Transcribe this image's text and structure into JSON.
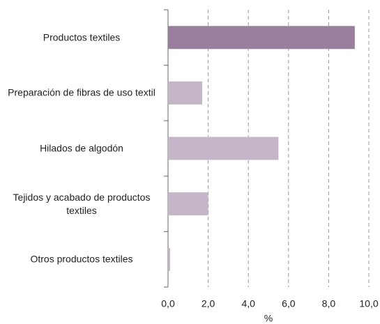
{
  "chart_data": {
    "type": "bar",
    "orientation": "horizontal",
    "categories": [
      "Productos textiles",
      "Preparación de fibras de uso textil",
      "Hilados de algodón",
      "Tejidos y acabado de productos textiles",
      "Otros productos textiles"
    ],
    "values": [
      9.3,
      1.7,
      5.5,
      2.0,
      0.1
    ],
    "colors": [
      "#9a7e9e",
      "#c5b5c9",
      "#c5b5c9",
      "#c5b5c9",
      "#c5b5c9"
    ],
    "xlabel": "%",
    "xlim": [
      0,
      10
    ],
    "xticks": [
      {
        "value": 0,
        "label": "0,0"
      },
      {
        "value": 2,
        "label": "2,0"
      },
      {
        "value": 4,
        "label": "4,0"
      },
      {
        "value": 6,
        "label": "6,0"
      },
      {
        "value": 8,
        "label": "8,0"
      },
      {
        "value": 10,
        "label": "10,0"
      }
    ],
    "grid": true
  }
}
